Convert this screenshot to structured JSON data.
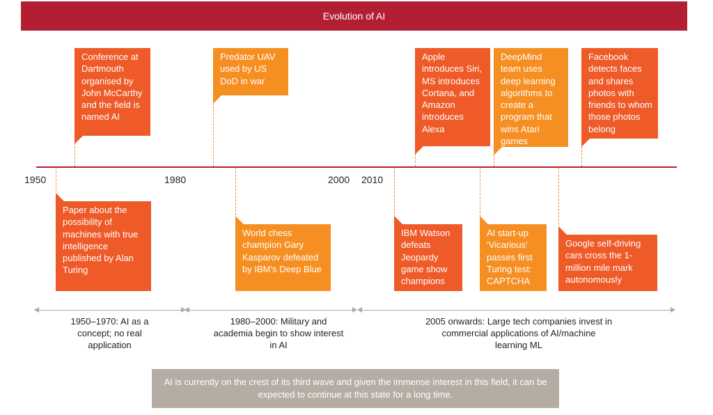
{
  "title": "Evolution of AI",
  "years": [
    "1950",
    "1980",
    "2000",
    "2010"
  ],
  "events_above": [
    "Conference at Dartmouth organised by John McCarthy and the field is named AI",
    "Predator UAV used by US DoD in war",
    "Apple introduces Siri, MS introduces Cortana, and Amazon introduces Alexa",
    "DeepMind team uses deep learning algorithms to create a program that wins Atari games",
    "Facebook detects faces and shares photos with friends to whom those photos belong"
  ],
  "events_below": [
    "Paper about the possibility of machines with true intelligence published by Alan Turing",
    "World chess champion Gary Kasparov defeated by IBM’s Deep Blue",
    "IBM Watson defeats Jeopardy game show champions",
    "AI start-up ‘Vicarious’ passes first Turing test: CAPTCHA",
    "Google self-driving cars cross the 1-million mile mark autonomously"
  ],
  "eras": [
    "1950–1970: AI as a concept; no real application",
    "1980–2000: Military and academia begin to show interest in AI",
    "2005 onwards: Large tech companies invest in commercial applications of AI/machine learning ML"
  ],
  "note": "AI is currently on the crest of its third wave and given the immense interest in this field, it can be expected to continue at this state for a long time.",
  "colors": {
    "title_bar": "#b21f32",
    "axis": "#b21f32",
    "box_dark": "#ee5a28",
    "box_light": "#f58f22",
    "note_bg": "#b5aca3"
  }
}
